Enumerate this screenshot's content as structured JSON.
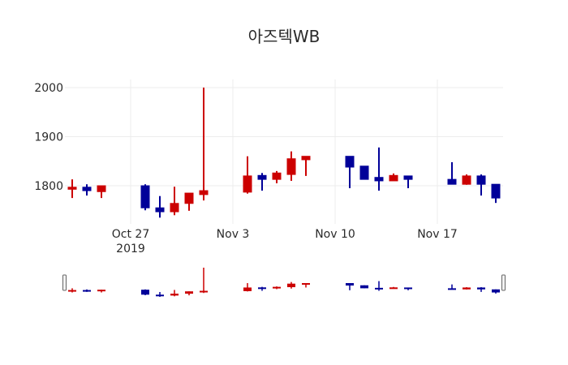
{
  "chart_data": {
    "type": "candlestick",
    "title": "아즈텍WB",
    "xlabel": "",
    "ylabel": "",
    "ylim": [
      1728,
      2008
    ],
    "grid": true,
    "rangeslider": true,
    "increasing_color": "#cc0000",
    "decreasing_color": "#000099",
    "y_ticks": [
      1800,
      1900,
      2000
    ],
    "x_ticks": [
      {
        "date": "2019-10-27",
        "label": "Oct 27",
        "sublabel": "2019"
      },
      {
        "date": "2019-11-03",
        "label": "Nov 3"
      },
      {
        "date": "2019-11-10",
        "label": "Nov 10"
      },
      {
        "date": "2019-11-17",
        "label": "Nov 17"
      }
    ],
    "x_range": [
      "2019-10-22.6",
      "2019-11-21.5"
    ],
    "candles": [
      {
        "date": "2019-10-23",
        "open": 1795,
        "high": 1813,
        "low": 1775,
        "close": 1797
      },
      {
        "date": "2019-10-24",
        "open": 1797,
        "high": 1803,
        "low": 1780,
        "close": 1790
      },
      {
        "date": "2019-10-25",
        "open": 1788,
        "high": 1800,
        "low": 1775,
        "close": 1800
      },
      {
        "date": "2019-10-28",
        "open": 1800,
        "high": 1803,
        "low": 1750,
        "close": 1755
      },
      {
        "date": "2019-10-29",
        "open": 1755,
        "high": 1779,
        "low": 1735,
        "close": 1747
      },
      {
        "date": "2019-10-30",
        "open": 1747,
        "high": 1798,
        "low": 1740,
        "close": 1764
      },
      {
        "date": "2019-10-31",
        "open": 1764,
        "high": 1785,
        "low": 1749,
        "close": 1785
      },
      {
        "date": "2019-11-01",
        "open": 1782,
        "high": 2000,
        "low": 1770,
        "close": 1790
      },
      {
        "date": "2019-11-04",
        "open": 1787,
        "high": 1860,
        "low": 1784,
        "close": 1820
      },
      {
        "date": "2019-11-05",
        "open": 1821,
        "high": 1826,
        "low": 1790,
        "close": 1813
      },
      {
        "date": "2019-11-06",
        "open": 1813,
        "high": 1830,
        "low": 1805,
        "close": 1826
      },
      {
        "date": "2019-11-07",
        "open": 1823,
        "high": 1870,
        "low": 1810,
        "close": 1855
      },
      {
        "date": "2019-11-08",
        "open": 1853,
        "high": 1860,
        "low": 1820,
        "close": 1860
      },
      {
        "date": "2019-11-11",
        "open": 1860,
        "high": 1860,
        "low": 1795,
        "close": 1838
      },
      {
        "date": "2019-11-12",
        "open": 1840,
        "high": 1840,
        "low": 1813,
        "close": 1813
      },
      {
        "date": "2019-11-13",
        "open": 1817,
        "high": 1878,
        "low": 1790,
        "close": 1810
      },
      {
        "date": "2019-11-14",
        "open": 1810,
        "high": 1825,
        "low": 1810,
        "close": 1821
      },
      {
        "date": "2019-11-15",
        "open": 1820,
        "high": 1820,
        "low": 1795,
        "close": 1813
      },
      {
        "date": "2019-11-18",
        "open": 1813,
        "high": 1848,
        "low": 1803,
        "close": 1803
      },
      {
        "date": "2019-11-19",
        "open": 1803,
        "high": 1823,
        "low": 1802,
        "close": 1820
      },
      {
        "date": "2019-11-20",
        "open": 1820,
        "high": 1823,
        "low": 1780,
        "close": 1803
      },
      {
        "date": "2019-11-21",
        "open": 1803,
        "high": 1803,
        "low": 1765,
        "close": 1775
      }
    ]
  }
}
